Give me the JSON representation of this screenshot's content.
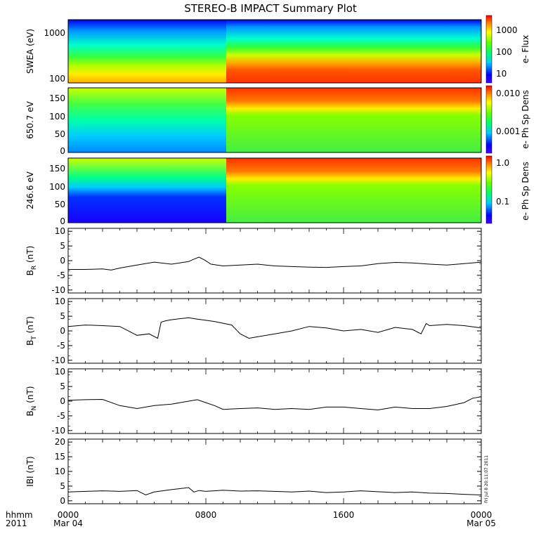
{
  "title": "STEREO-B IMPACT Summary Plot",
  "footer": {
    "corner_line1": "hhmm",
    "corner_line2": "2011",
    "x_ticks": [
      "0000",
      "0800",
      "1600",
      "0000"
    ],
    "x_dates": [
      "Mar 04",
      "",
      "",
      "Mar 05"
    ],
    "timestamp": "Fri Jul 8 20:11:07 2011"
  },
  "chart_data": [
    {
      "id": "swea",
      "type": "heatmap",
      "ylabel": "SWEA (eV)",
      "y_ticks": [
        "1000",
        "100"
      ],
      "colorbar_label": "e- Flux",
      "colorbar_ticks": [
        "1000",
        "100",
        "10"
      ],
      "y_scale": "log",
      "ylim": [
        90,
        2000
      ],
      "x_range_hours": [
        0,
        24
      ]
    },
    {
      "id": "pad650",
      "type": "heatmap",
      "ylabel": "650.7 eV",
      "y_ticks": [
        "150",
        "100",
        "50",
        "0"
      ],
      "colorbar_label": "e- Ph Sp Dens",
      "colorbar_ticks": [
        "0.010",
        "0.001"
      ],
      "ylim": [
        0,
        180
      ],
      "x_range_hours": [
        0,
        24
      ]
    },
    {
      "id": "pad246",
      "type": "heatmap",
      "ylabel": "246.6 eV",
      "y_ticks": [
        "150",
        "100",
        "50",
        "0"
      ],
      "colorbar_label": "e- Ph Sp Dens",
      "colorbar_ticks": [
        "1.0",
        "0.1"
      ],
      "ylim": [
        0,
        180
      ],
      "x_range_hours": [
        0,
        24
      ]
    },
    {
      "id": "br",
      "type": "line",
      "ylabel_main": "B",
      "ylabel_sub": "R",
      "ylabel_unit": " (nT)",
      "ylim": [
        -11,
        11
      ],
      "y_ticks": [
        "10",
        "5",
        "0",
        "-5",
        "-10"
      ],
      "x_hours": [
        0,
        1,
        2,
        2.5,
        3,
        4,
        5,
        6,
        7,
        7.3,
        7.6,
        7.9,
        8.3,
        9,
        10,
        11,
        12,
        13,
        14,
        15,
        16,
        17,
        18,
        19,
        20,
        21,
        22,
        23,
        24
      ],
      "values": [
        -3,
        -3,
        -2.8,
        -3.2,
        -2.5,
        -1.5,
        -0.5,
        -1.2,
        -0.3,
        0.5,
        1.2,
        0.3,
        -1.2,
        -1.8,
        -1.5,
        -1.2,
        -1.8,
        -2,
        -2.2,
        -2.3,
        -2,
        -1.8,
        -1,
        -0.6,
        -0.8,
        -1.2,
        -1.5,
        -1,
        -0.5
      ]
    },
    {
      "id": "bt",
      "type": "line",
      "ylabel_main": "B",
      "ylabel_sub": "T",
      "ylabel_unit": " (nT)",
      "ylim": [
        -11,
        11
      ],
      "y_ticks": [
        "10",
        "5",
        "0",
        "-5",
        "-10"
      ],
      "x_hours": [
        0,
        1,
        2,
        3,
        4,
        4.7,
        5.2,
        5.4,
        5.7,
        6,
        7,
        7.5,
        8,
        8.5,
        9.5,
        10,
        10.5,
        11,
        12,
        13,
        14,
        15,
        16,
        17,
        18,
        19,
        20,
        20.5,
        20.8,
        21,
        22,
        23,
        24
      ],
      "values": [
        1.5,
        2,
        1.8,
        1.5,
        -1.5,
        -1,
        -2.5,
        3,
        3.5,
        3.8,
        4.5,
        4,
        3.6,
        3.2,
        2,
        -1,
        -2.5,
        -2,
        -1,
        0,
        1.5,
        1,
        0,
        0.5,
        -0.5,
        1.2,
        0.5,
        -1,
        2.5,
        1.8,
        2.2,
        1.8,
        1
      ]
    },
    {
      "id": "bn",
      "type": "line",
      "ylabel_main": "B",
      "ylabel_sub": "N",
      "ylabel_unit": " (nT)",
      "ylim": [
        -11,
        11
      ],
      "y_ticks": [
        "10",
        "5",
        "0",
        "-5",
        "-10"
      ],
      "x_hours": [
        0,
        1,
        2,
        3,
        4,
        5,
        6,
        7,
        7.5,
        8,
        8.5,
        9,
        10,
        11,
        12,
        13,
        14,
        15,
        16,
        17,
        18,
        19,
        20,
        21,
        22,
        23,
        23.5,
        24
      ],
      "values": [
        0.3,
        0.5,
        0.6,
        -1.5,
        -2.5,
        -1.5,
        -1,
        0,
        0.5,
        -0.5,
        -1.5,
        -2.8,
        -2.5,
        -2.3,
        -2.8,
        -2.5,
        -2.8,
        -2,
        -2,
        -2.5,
        -3,
        -2,
        -2.5,
        -2.5,
        -1.8,
        -0.5,
        1,
        1.5
      ]
    },
    {
      "id": "bmag",
      "type": "line",
      "ylabel_main": "IBI",
      "ylabel_sub": "",
      "ylabel_unit": " (nT)",
      "ylim": [
        -1,
        21
      ],
      "y_ticks": [
        "20",
        "15",
        "10",
        "5",
        "0"
      ],
      "x_hours": [
        0,
        1,
        2,
        3,
        4,
        4.5,
        5,
        6,
        7,
        7.3,
        7.6,
        8,
        9,
        10,
        11,
        12,
        13,
        14,
        15,
        16,
        17,
        18,
        19,
        20,
        21,
        22,
        23,
        24
      ],
      "values": [
        3,
        3.2,
        3.4,
        3.2,
        3.5,
        2,
        3,
        3.8,
        4.5,
        3,
        3.5,
        3.2,
        3.6,
        3.3,
        3.4,
        3.2,
        3,
        3.3,
        2.8,
        3,
        3.4,
        3.1,
        2.8,
        3,
        2.6,
        2.5,
        2.2,
        2
      ]
    }
  ]
}
